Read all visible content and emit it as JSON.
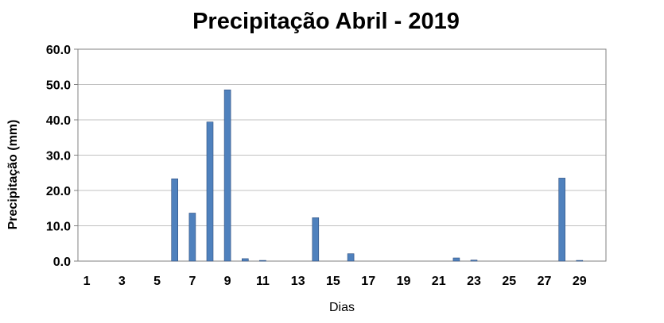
{
  "chart_data": {
    "type": "bar",
    "title": "Precipitação Abril - 2019",
    "xlabel": "Dias",
    "ylabel": "Precipitação (mm)",
    "ylim": [
      0,
      60
    ],
    "y_ticks": [
      "0.0",
      "10.0",
      "20.0",
      "30.0",
      "40.0",
      "50.0",
      "60.0"
    ],
    "categories": [
      "1",
      "2",
      "3",
      "4",
      "5",
      "6",
      "7",
      "8",
      "9",
      "10",
      "11",
      "12",
      "13",
      "14",
      "15",
      "16",
      "17",
      "18",
      "19",
      "20",
      "21",
      "22",
      "23",
      "24",
      "25",
      "26",
      "27",
      "28",
      "29",
      "30"
    ],
    "x_tick_labels": [
      "1",
      "3",
      "5",
      "7",
      "9",
      "11",
      "13",
      "15",
      "17",
      "19",
      "21",
      "23",
      "25",
      "27",
      "29"
    ],
    "values": [
      0,
      0,
      0,
      0,
      0,
      23.3,
      13.6,
      39.4,
      48.5,
      0.7,
      0.2,
      0,
      0,
      12.3,
      0,
      2.1,
      0,
      0,
      0,
      0,
      0,
      0.9,
      0.3,
      0,
      0,
      0,
      0,
      23.5,
      0.2,
      0
    ],
    "grid": "horizontal",
    "bar_color": "#4f81bd",
    "legend": "none"
  }
}
